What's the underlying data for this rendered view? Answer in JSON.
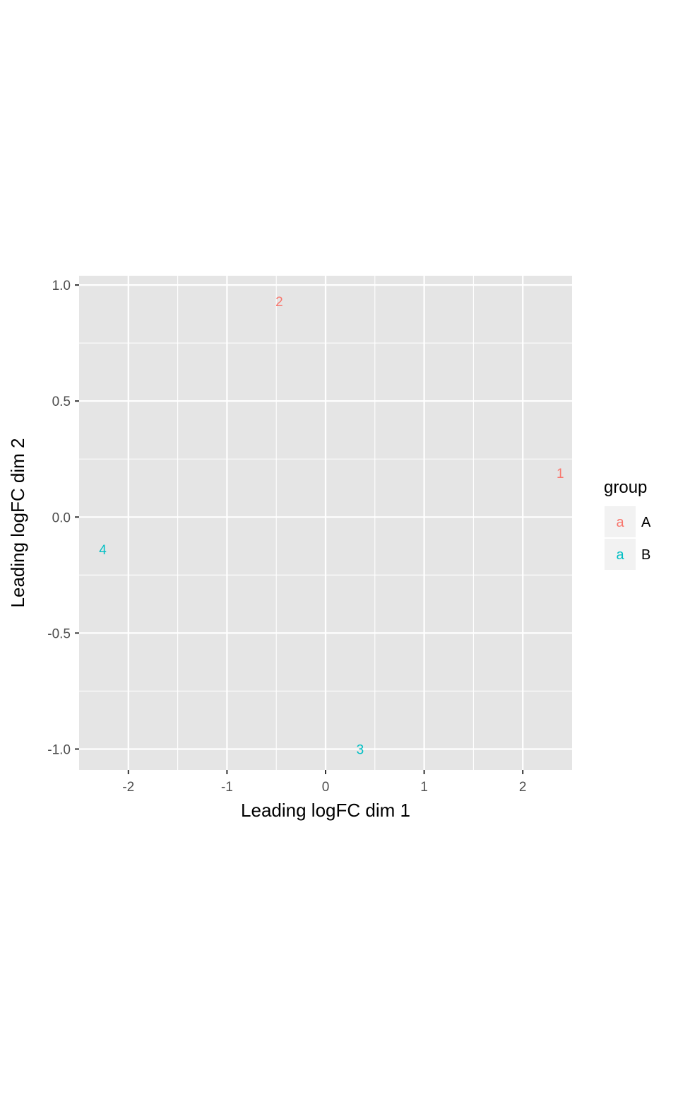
{
  "chart_data": {
    "type": "scatter",
    "title": "",
    "xlabel": "Leading logFC dim 1",
    "ylabel": "Leading logFC dim 2",
    "xlim": [
      -2.5,
      2.5
    ],
    "ylim": [
      -1.09,
      1.04
    ],
    "x_ticks": [
      -2,
      -1,
      0,
      1,
      2
    ],
    "x_tick_labels": [
      "-2",
      "-1",
      "0",
      "1",
      "2"
    ],
    "y_ticks": [
      -1.0,
      -0.5,
      0.0,
      0.5,
      1.0
    ],
    "y_tick_labels": [
      "-1.0",
      "-0.5",
      "0.0",
      "0.5",
      "1.0"
    ],
    "grid": true,
    "panel_background": "#e5e5e5",
    "grid_color": "#ffffff",
    "points": [
      {
        "label": "1",
        "x": 2.38,
        "y": 0.19,
        "group": "A"
      },
      {
        "label": "2",
        "x": -0.47,
        "y": 0.93,
        "group": "A"
      },
      {
        "label": "3",
        "x": 0.35,
        "y": -1.0,
        "group": "B"
      },
      {
        "label": "4",
        "x": -2.26,
        "y": -0.14,
        "group": "B"
      }
    ],
    "legend": {
      "title": "group",
      "position": "right",
      "key_glyph": "a",
      "entries": [
        {
          "name": "A",
          "color": "#F8766D"
        },
        {
          "name": "B",
          "color": "#00BFC4"
        }
      ]
    }
  }
}
